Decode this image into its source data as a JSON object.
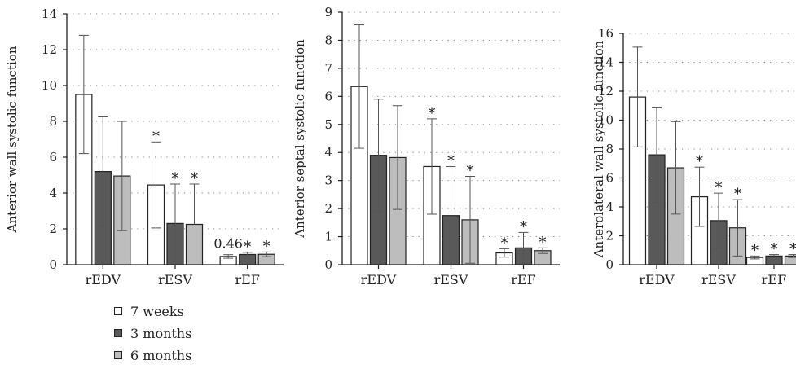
{
  "colors": {
    "series": [
      "#ffffff",
      "#595959",
      "#bdbdbd"
    ],
    "axis": "#222222",
    "grid": "#888888"
  },
  "legend": {
    "items": [
      {
        "label": "7 weeks",
        "color": "#ffffff"
      },
      {
        "label": "3 months",
        "color": "#595959"
      },
      {
        "label": "6 months",
        "color": "#bdbdbd"
      }
    ]
  },
  "chart_data": [
    {
      "type": "bar",
      "ylabel": "Anterior wall systolic function",
      "categories": [
        "rEDV",
        "rESV",
        "rEF"
      ],
      "ylim": [
        0,
        14
      ],
      "yticks": [
        0,
        2,
        4,
        6,
        8,
        10,
        12,
        14
      ],
      "grid": true,
      "series": [
        {
          "name": "7 weeks",
          "values": [
            9.5,
            4.45,
            0.46
          ],
          "errors": [
            3.3,
            2.4,
            0.1
          ],
          "stars": [
            false,
            true,
            false
          ]
        },
        {
          "name": "3 months",
          "values": [
            5.2,
            2.3,
            0.57
          ],
          "errors": [
            3.05,
            2.2,
            0.12
          ],
          "stars": [
            false,
            true,
            true
          ]
        },
        {
          "name": "6 months",
          "values": [
            4.95,
            2.25,
            0.58
          ],
          "errors": [
            3.05,
            2.25,
            0.13
          ],
          "stars": [
            false,
            true,
            true
          ]
        }
      ],
      "annotations": [
        {
          "text": "0.46",
          "category": "rEF"
        }
      ]
    },
    {
      "type": "bar",
      "ylabel": "Anterior septal systolic function",
      "categories": [
        "rEDV",
        "rESV",
        "rEF"
      ],
      "ylim": [
        0,
        9
      ],
      "yticks": [
        0,
        1,
        2,
        3,
        4,
        5,
        6,
        7,
        8,
        9
      ],
      "grid": true,
      "series": [
        {
          "name": "7 weeks",
          "values": [
            6.35,
            3.5,
            0.42
          ],
          "errors": [
            2.2,
            1.7,
            0.15
          ],
          "stars": [
            false,
            true,
            true
          ]
        },
        {
          "name": "3 months",
          "values": [
            3.9,
            1.75,
            0.6
          ],
          "errors": [
            2.0,
            1.75,
            0.55
          ],
          "stars": [
            false,
            true,
            true
          ]
        },
        {
          "name": "6 months",
          "values": [
            3.82,
            1.6,
            0.5
          ],
          "errors": [
            1.85,
            1.55,
            0.1
          ],
          "stars": [
            false,
            true,
            true
          ]
        }
      ],
      "annotations": []
    },
    {
      "type": "bar",
      "ylabel": "Anterolateral wall systolic function",
      "categories": [
        "rEDV",
        "rESV",
        "rEF"
      ],
      "ylim": [
        0,
        16
      ],
      "yticks": [
        0,
        2,
        4,
        6,
        8,
        10,
        12,
        14,
        16
      ],
      "grid": true,
      "series": [
        {
          "name": "7 weeks",
          "values": [
            11.6,
            4.7,
            0.5
          ],
          "errors": [
            3.45,
            2.05,
            0.1
          ],
          "stars": [
            false,
            true,
            true
          ]
        },
        {
          "name": "3 months",
          "values": [
            7.6,
            3.05,
            0.6
          ],
          "errors": [
            3.3,
            1.9,
            0.1
          ],
          "stars": [
            false,
            true,
            true
          ]
        },
        {
          "name": "6 months",
          "values": [
            6.7,
            2.55,
            0.6
          ],
          "errors": [
            3.2,
            1.95,
            0.1
          ],
          "stars": [
            false,
            true,
            true
          ]
        }
      ],
      "annotations": []
    }
  ]
}
